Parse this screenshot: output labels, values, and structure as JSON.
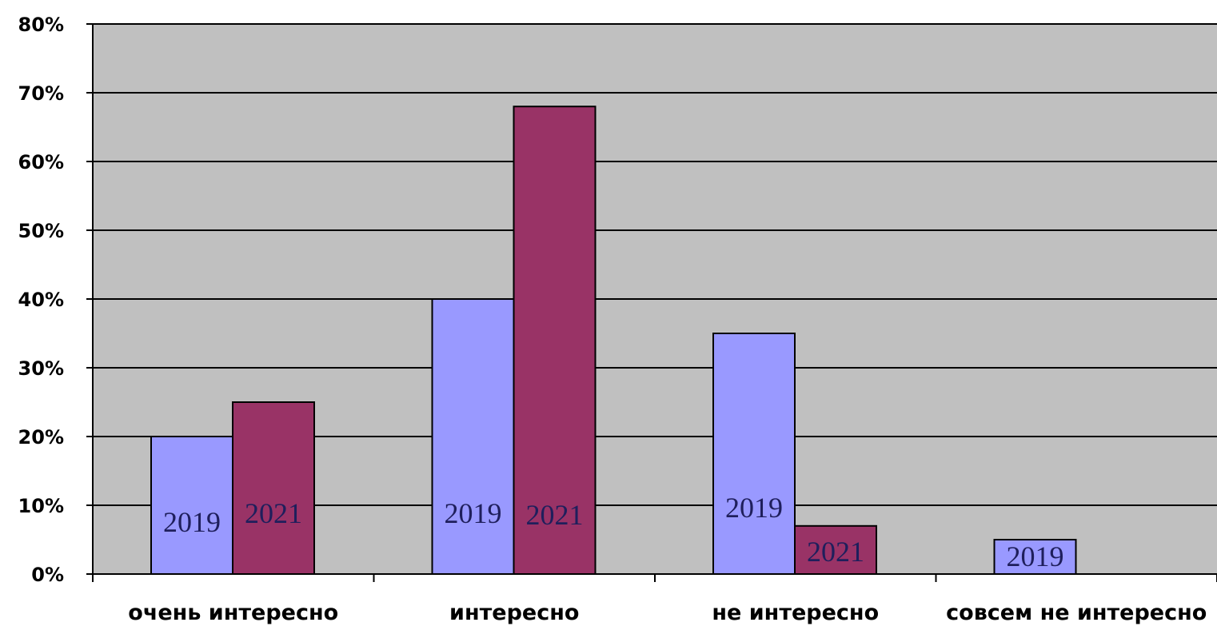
{
  "chart_data": {
    "type": "bar",
    "title": "",
    "xlabel": "",
    "ylabel": "",
    "categories": [
      "очень интересно",
      "интересно",
      "не интересно",
      "совсем не интересно"
    ],
    "series": [
      {
        "name": "2019",
        "color": "#9999ff",
        "values": [
          20,
          40,
          35,
          5
        ]
      },
      {
        "name": "2021",
        "color": "#993366",
        "values": [
          25,
          68,
          7,
          0
        ]
      }
    ],
    "data_labels": [
      [
        "2019",
        "2019",
        "2019",
        "2019"
      ],
      [
        "2021",
        "2021",
        "2021",
        ""
      ]
    ],
    "y_tick_labels": [
      "0%",
      "10%",
      "20%",
      "30%",
      "40%",
      "50%",
      "60%",
      "70%",
      "80%"
    ],
    "ylim": [
      0,
      80
    ],
    "y_unit": "%",
    "grid": true,
    "legend": "none",
    "plot_background": "#c0c0c0"
  }
}
